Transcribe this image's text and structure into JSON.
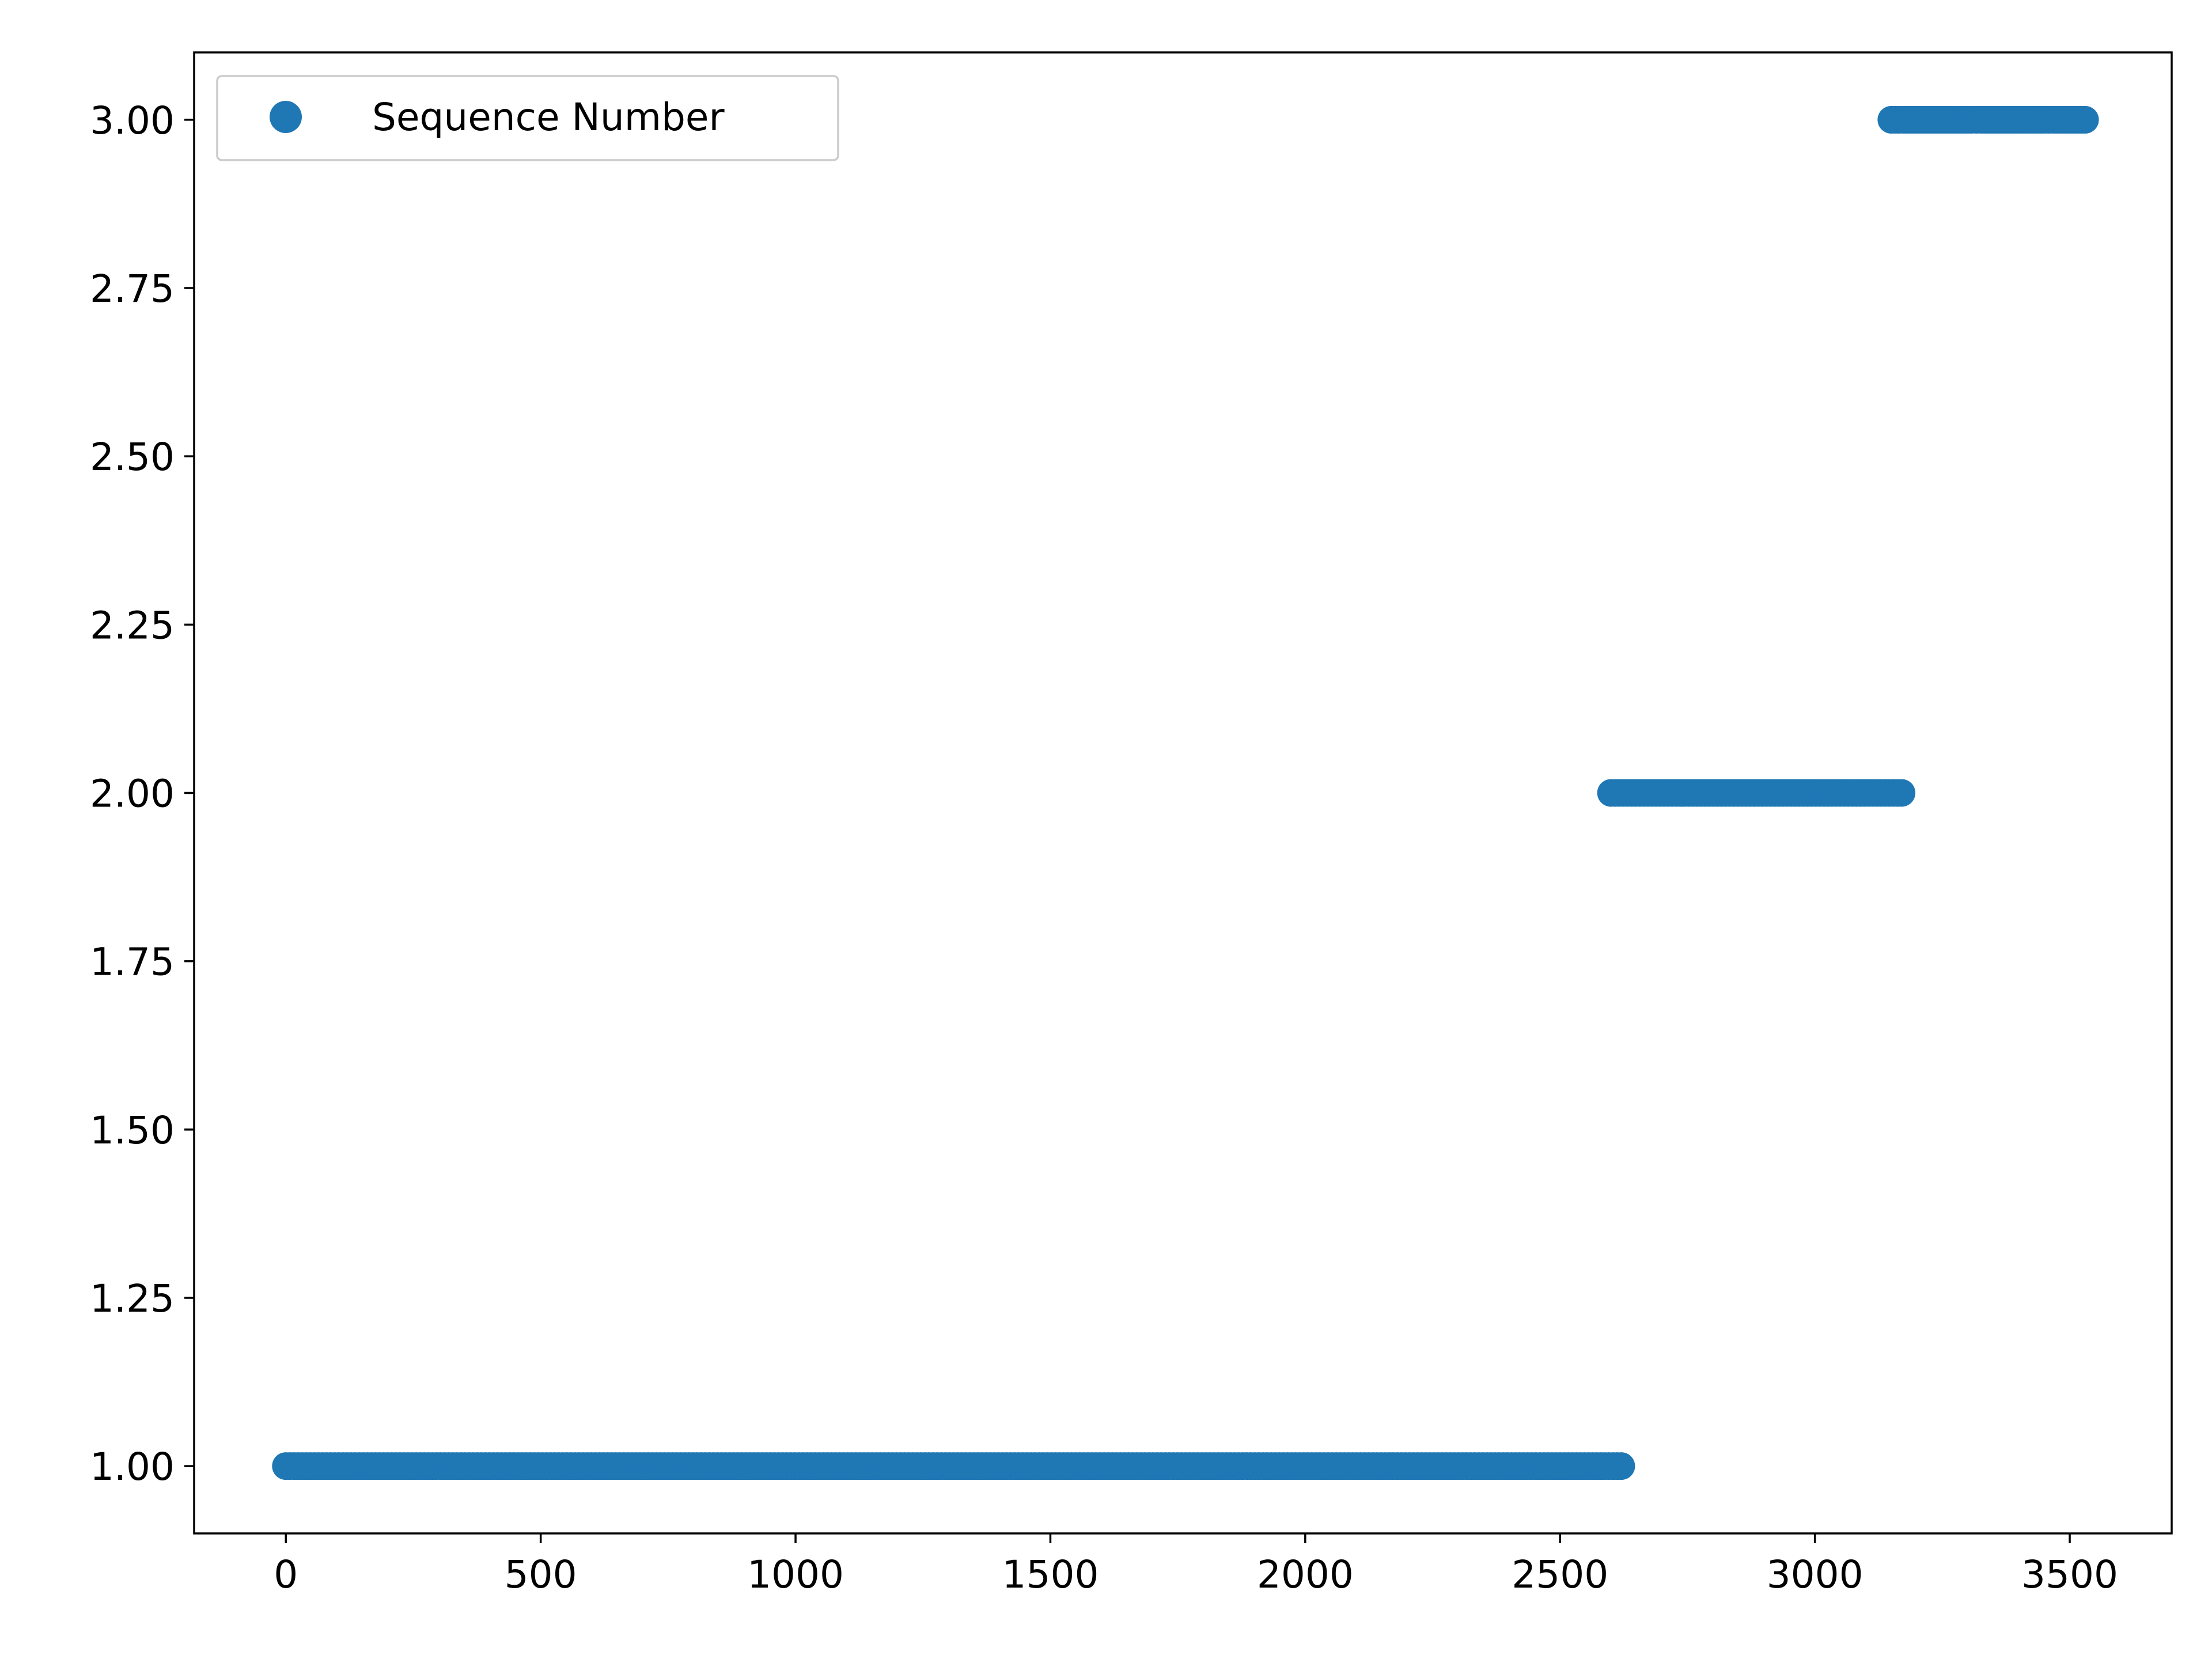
{
  "chart_data": {
    "type": "scatter",
    "title": "",
    "xlabel": "",
    "ylabel": "",
    "xlim": [
      -180,
      3700
    ],
    "ylim": [
      0.9,
      3.1
    ],
    "xticks": [
      0,
      500,
      1000,
      1500,
      2000,
      2500,
      3000,
      3500
    ],
    "yticks": [
      1.0,
      1.25,
      1.5,
      1.75,
      2.0,
      2.25,
      2.5,
      2.75,
      3.0
    ],
    "grid": false,
    "legend": {
      "placement": "upper-left",
      "entries": [
        "Sequence Number"
      ]
    },
    "series": [
      {
        "name": "Sequence Number",
        "color": "#1f77b4",
        "marker": "circle",
        "segments": [
          {
            "x_start": 0,
            "x_end": 2620,
            "y": 1
          },
          {
            "x_start": 2600,
            "x_end": 3170,
            "y": 2
          },
          {
            "x_start": 3150,
            "x_end": 3530,
            "y": 3
          }
        ]
      }
    ]
  }
}
